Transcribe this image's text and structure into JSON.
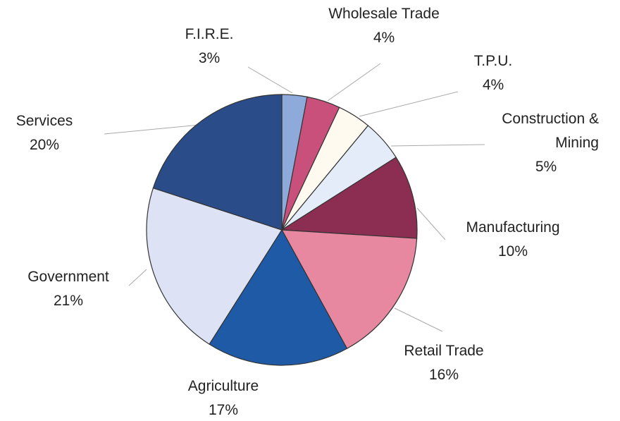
{
  "chart_data": {
    "type": "pie",
    "categories": [
      "F.I.R.E.",
      "Wholesale Trade",
      "T.P.U.",
      "Construction & Mining",
      "Manufacturing",
      "Retail Trade",
      "Agriculture",
      "Government",
      "Services"
    ],
    "values": [
      3,
      4,
      4,
      5,
      10,
      16,
      17,
      21,
      20
    ],
    "value_labels": [
      "3%",
      "4%",
      "4%",
      "5%",
      "10%",
      "16%",
      "17%",
      "21%",
      "20%"
    ],
    "colors": [
      "#8eaadb",
      "#c8507a",
      "#fffaf0",
      "#e3ecf8",
      "#8b2e52",
      "#e887a0",
      "#1f5aa6",
      "#dde3f5",
      "#2a4d8a"
    ]
  }
}
